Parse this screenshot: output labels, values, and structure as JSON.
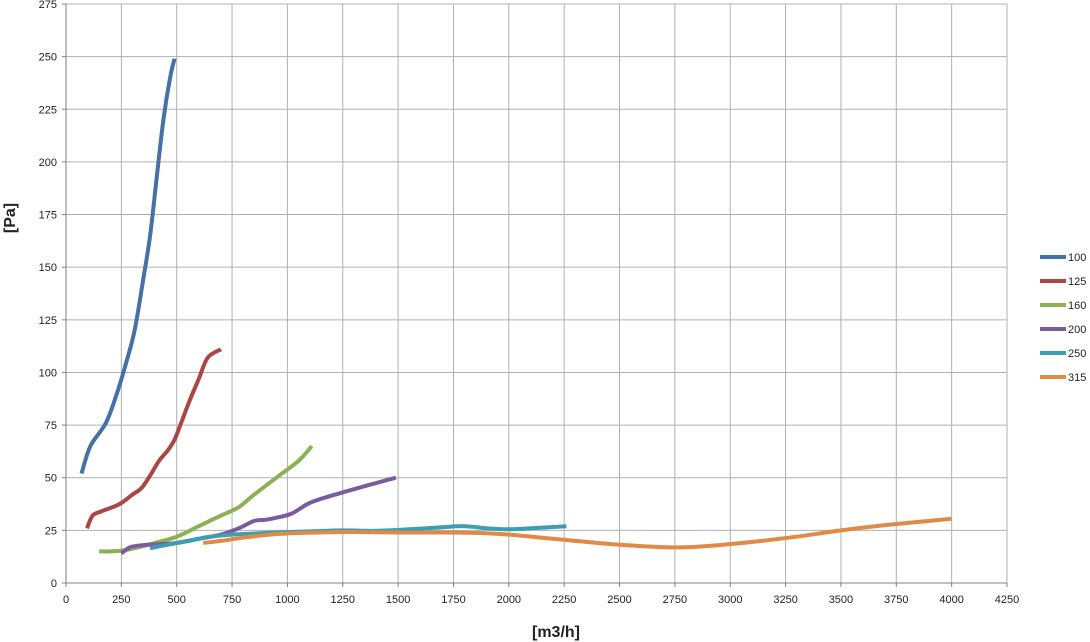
{
  "chart_data": {
    "type": "line",
    "title": "",
    "xlabel": "[m3/h]",
    "ylabel": "[Pa]",
    "xlim": [
      0,
      4250
    ],
    "ylim": [
      0,
      275
    ],
    "x_ticks": [
      0,
      250,
      500,
      750,
      1000,
      1250,
      1500,
      1750,
      2000,
      2250,
      2500,
      2750,
      3000,
      3250,
      3500,
      3750,
      4000,
      4250
    ],
    "y_ticks": [
      0,
      25,
      50,
      75,
      100,
      125,
      150,
      175,
      200,
      225,
      250,
      275
    ],
    "grid": true,
    "legend_position": "right",
    "series": [
      {
        "name": "100",
        "color": "#4472a8",
        "points": [
          [
            70,
            52
          ],
          [
            110,
            65
          ],
          [
            180,
            76
          ],
          [
            230,
            90
          ],
          [
            270,
            104
          ],
          [
            310,
            120
          ],
          [
            350,
            145
          ],
          [
            380,
            165
          ],
          [
            410,
            193
          ],
          [
            440,
            220
          ],
          [
            470,
            240
          ],
          [
            490,
            249
          ]
        ]
      },
      {
        "name": "125",
        "color": "#aa4644",
        "points": [
          [
            95,
            26
          ],
          [
            120,
            32
          ],
          [
            160,
            34
          ],
          [
            210,
            36
          ],
          [
            250,
            38
          ],
          [
            300,
            42
          ],
          [
            340,
            45
          ],
          [
            380,
            51
          ],
          [
            420,
            58
          ],
          [
            460,
            63
          ],
          [
            490,
            68
          ],
          [
            520,
            76
          ],
          [
            560,
            87
          ],
          [
            600,
            97
          ],
          [
            640,
            107
          ],
          [
            700,
            111
          ]
        ]
      },
      {
        "name": "160",
        "color": "#8bb153",
        "points": [
          [
            150,
            15
          ],
          [
            200,
            15
          ],
          [
            260,
            15.5
          ],
          [
            330,
            17
          ],
          [
            400,
            19
          ],
          [
            500,
            22
          ],
          [
            600,
            27
          ],
          [
            700,
            32
          ],
          [
            780,
            36
          ],
          [
            850,
            42
          ],
          [
            950,
            50
          ],
          [
            1050,
            58
          ],
          [
            1110,
            65
          ]
        ]
      },
      {
        "name": "200",
        "color": "#7a5c9e",
        "points": [
          [
            250,
            14
          ],
          [
            290,
            17
          ],
          [
            350,
            18
          ],
          [
            430,
            18.5
          ],
          [
            500,
            19
          ],
          [
            600,
            21
          ],
          [
            700,
            23
          ],
          [
            780,
            26
          ],
          [
            850,
            29.5
          ],
          [
            900,
            30
          ],
          [
            950,
            31
          ],
          [
            1020,
            33
          ],
          [
            1100,
            38
          ],
          [
            1200,
            41.5
          ],
          [
            1350,
            46
          ],
          [
            1490,
            50
          ]
        ]
      },
      {
        "name": "250",
        "color": "#3d9db3",
        "points": [
          [
            380,
            16.5
          ],
          [
            450,
            18
          ],
          [
            550,
            20
          ],
          [
            650,
            22
          ],
          [
            750,
            23
          ],
          [
            850,
            23.5
          ],
          [
            950,
            24
          ],
          [
            1100,
            24.5
          ],
          [
            1250,
            25
          ],
          [
            1400,
            24.8
          ],
          [
            1550,
            25.5
          ],
          [
            1700,
            26.5
          ],
          [
            1800,
            27
          ],
          [
            1900,
            26
          ],
          [
            2000,
            25.5
          ],
          [
            2100,
            26
          ],
          [
            2260,
            27
          ]
        ]
      },
      {
        "name": "315",
        "color": "#df8a47",
        "points": [
          [
            620,
            19
          ],
          [
            700,
            20
          ],
          [
            800,
            21.5
          ],
          [
            900,
            22.8
          ],
          [
            1000,
            23.5
          ],
          [
            1150,
            24
          ],
          [
            1300,
            24.2
          ],
          [
            1500,
            24
          ],
          [
            1700,
            24
          ],
          [
            1850,
            23.8
          ],
          [
            2000,
            23
          ],
          [
            2150,
            21.5
          ],
          [
            2300,
            20
          ],
          [
            2500,
            18.2
          ],
          [
            2700,
            17
          ],
          [
            2800,
            17
          ],
          [
            2950,
            18
          ],
          [
            3100,
            19.5
          ],
          [
            3300,
            22
          ],
          [
            3500,
            25
          ],
          [
            3700,
            27.5
          ],
          [
            3850,
            29
          ],
          [
            4000,
            30.5
          ]
        ]
      }
    ]
  }
}
